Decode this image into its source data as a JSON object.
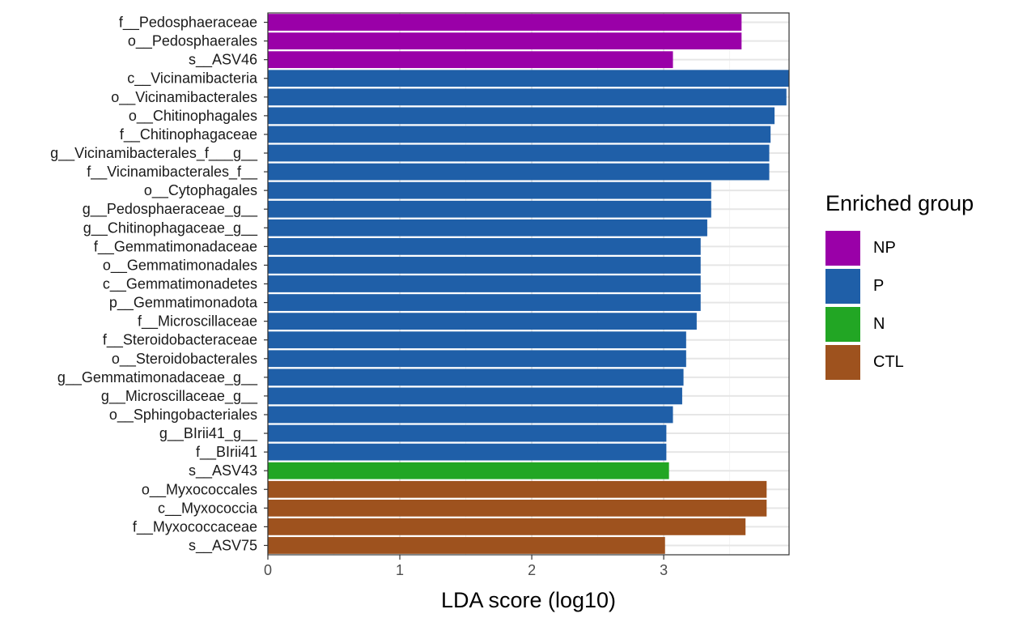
{
  "chart_data": {
    "type": "bar",
    "orientation": "horizontal",
    "title": "",
    "xlabel": "LDA score (log10)",
    "ylabel": "",
    "xlim": [
      0,
      3.95
    ],
    "xticks": [
      0,
      1,
      2,
      3
    ],
    "grid": true,
    "legend": {
      "title": "Enriched group",
      "placement": "right",
      "entries": [
        {
          "name": "NP",
          "color": "#9A00A8"
        },
        {
          "name": "P",
          "color": "#1F5FA8"
        },
        {
          "name": "N",
          "color": "#22A624"
        },
        {
          "name": "CTL",
          "color": "#9E521E"
        }
      ]
    },
    "bars": [
      {
        "label": "f__Pedosphaeraceae",
        "value": 3.59,
        "group": "NP"
      },
      {
        "label": "o__Pedosphaerales",
        "value": 3.59,
        "group": "NP"
      },
      {
        "label": "s__ASV46",
        "value": 3.07,
        "group": "NP"
      },
      {
        "label": "c__Vicinamibacteria",
        "value": 3.95,
        "group": "P"
      },
      {
        "label": "o__Vicinamibacterales",
        "value": 3.93,
        "group": "P"
      },
      {
        "label": "o__Chitinophagales",
        "value": 3.84,
        "group": "P"
      },
      {
        "label": "f__Chitinophagaceae",
        "value": 3.81,
        "group": "P"
      },
      {
        "label": "g__Vicinamibacterales_f___g__",
        "value": 3.8,
        "group": "P"
      },
      {
        "label": "f__Vicinamibacterales_f__",
        "value": 3.8,
        "group": "P"
      },
      {
        "label": "o__Cytophagales",
        "value": 3.36,
        "group": "P"
      },
      {
        "label": "g__Pedosphaeraceae_g__",
        "value": 3.36,
        "group": "P"
      },
      {
        "label": "g__Chitinophagaceae_g__",
        "value": 3.33,
        "group": "P"
      },
      {
        "label": "f__Gemmatimonadaceae",
        "value": 3.28,
        "group": "P"
      },
      {
        "label": "o__Gemmatimonadales",
        "value": 3.28,
        "group": "P"
      },
      {
        "label": "c__Gemmatimonadetes",
        "value": 3.28,
        "group": "P"
      },
      {
        "label": "p__Gemmatimonadota",
        "value": 3.28,
        "group": "P"
      },
      {
        "label": "f__Microscillaceae",
        "value": 3.25,
        "group": "P"
      },
      {
        "label": "f__Steroidobacteraceae",
        "value": 3.17,
        "group": "P"
      },
      {
        "label": "o__Steroidobacterales",
        "value": 3.17,
        "group": "P"
      },
      {
        "label": "g__Gemmatimonadaceae_g__",
        "value": 3.15,
        "group": "P"
      },
      {
        "label": "g__Microscillaceae_g__",
        "value": 3.14,
        "group": "P"
      },
      {
        "label": "o__Sphingobacteriales",
        "value": 3.07,
        "group": "P"
      },
      {
        "label": "g__BIrii41_g__",
        "value": 3.02,
        "group": "P"
      },
      {
        "label": "f__BIrii41",
        "value": 3.02,
        "group": "P"
      },
      {
        "label": "s__ASV43",
        "value": 3.04,
        "group": "N"
      },
      {
        "label": "o__Myxococcales",
        "value": 3.78,
        "group": "CTL"
      },
      {
        "label": "c__Myxococcia",
        "value": 3.78,
        "group": "CTL"
      },
      {
        "label": "f__Myxococcaceae",
        "value": 3.62,
        "group": "CTL"
      },
      {
        "label": "s__ASV75",
        "value": 3.01,
        "group": "CTL"
      }
    ]
  }
}
